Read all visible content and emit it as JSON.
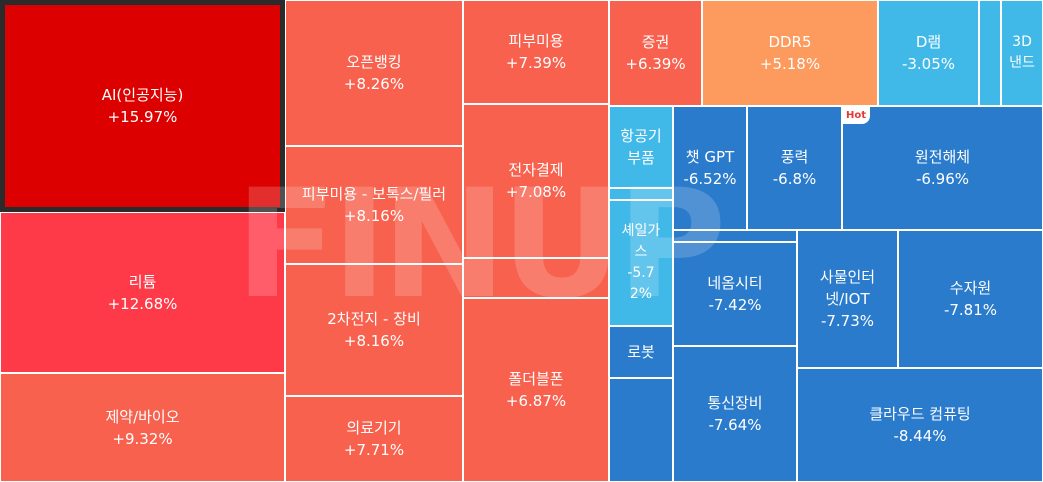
{
  "treemap": {
    "tiles": [
      {
        "name": "AI(인공지능)",
        "value": "+15.97%",
        "color": "#dd0000",
        "selected": true
      },
      {
        "name": "리튬",
        "value": "+12.68%",
        "color": "#ff3a48"
      },
      {
        "name": "제약/바이오",
        "value": "+9.32%",
        "color": "#f7614e"
      },
      {
        "name": "오픈뱅킹",
        "value": "+8.26%",
        "color": "#f7614e"
      },
      {
        "name": "피부미용 - 보톡스/필러",
        "value": "+8.16%",
        "color": "#f7614e"
      },
      {
        "name": "2차전지 - 장비",
        "value": "+8.16%",
        "color": "#f7614e"
      },
      {
        "name": "의료기기",
        "value": "+7.71%",
        "color": "#f7614e"
      },
      {
        "name": "피부미용",
        "value": "+7.39%",
        "color": "#f7614e"
      },
      {
        "name": "전자결제",
        "value": "+7.08%",
        "color": "#f7614e"
      },
      {
        "name": "폴더블폰",
        "value": "+6.87%",
        "color": "#f7614e"
      },
      {
        "name": "증권",
        "value": "+6.39%",
        "color": "#f7614e"
      },
      {
        "name": "DDR5",
        "value": "+5.18%",
        "color": "#fd9a5e"
      },
      {
        "name": "D램",
        "value": "-3.05%",
        "color": "#41b9e8"
      },
      {
        "name": "3D 낸드",
        "value": "",
        "color": "#41b9e8"
      },
      {
        "name": "항공기 부품",
        "value": "",
        "color": "#41b9e8"
      },
      {
        "name": "셰일가스",
        "value": "-5.72%",
        "color": "#41b9e8"
      },
      {
        "name": "로봇",
        "value": "",
        "color": "#2a7bcb"
      },
      {
        "name": "챗 GPT",
        "value": "-6.52%",
        "color": "#2a7bcb"
      },
      {
        "name": "풍력",
        "value": "-6.8%",
        "color": "#2a7bcb"
      },
      {
        "name": "원전해체",
        "value": "-6.96%",
        "color": "#2a7bcb"
      },
      {
        "name": "네옴시티",
        "value": "-7.42%",
        "color": "#2a7bcb"
      },
      {
        "name": "사물인터넷/IOT",
        "value": "-7.73%",
        "color": "#2a7bcb"
      },
      {
        "name": "수자원",
        "value": "-7.81%",
        "color": "#2a7bcb"
      },
      {
        "name": "통신장비",
        "value": "-7.64%",
        "color": "#2a7bcb"
      },
      {
        "name": "클라우드 컴퓨팅",
        "value": "-8.44%",
        "color": "#2a7bcb"
      }
    ],
    "hot_badge": "Hot",
    "watermark": "FINUP"
  }
}
